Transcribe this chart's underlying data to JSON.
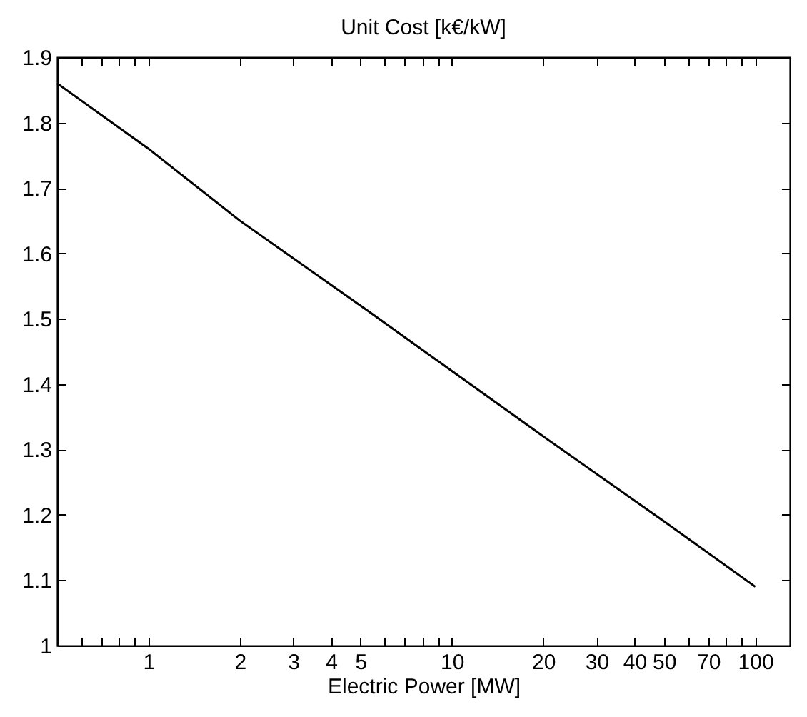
{
  "chart_data": {
    "type": "line",
    "title": "Unit Cost [k€/kW]",
    "xlabel": "Electric Power [MW]",
    "x": [
      0.5,
      1,
      2,
      5,
      10,
      20,
      50,
      100
    ],
    "series": [
      {
        "color": "#000000",
        "values": [
          1.86,
          1.76,
          1.65,
          1.52,
          1.42,
          1.32,
          1.19,
          1.09
        ]
      }
    ],
    "log": "x",
    "xlim": [
      0.5,
      130
    ],
    "ylim": [
      1,
      1.9
    ],
    "xticks": [
      {
        "value": 0.6,
        "label": null
      },
      {
        "value": 0.7,
        "label": null
      },
      {
        "value": 0.8,
        "label": null
      },
      {
        "value": 0.9,
        "label": null
      },
      1,
      2,
      3,
      4,
      5,
      {
        "value": 6,
        "label": null
      },
      {
        "value": 7,
        "label": null
      },
      {
        "value": 8,
        "label": null
      },
      {
        "value": 9,
        "label": null
      },
      10,
      20,
      30,
      40,
      50,
      {
        "value": 60,
        "label": null
      },
      70,
      {
        "value": 80,
        "label": null
      },
      {
        "value": 90,
        "label": null
      },
      100
    ],
    "yticks": [
      1,
      1.1,
      1.2,
      1.3,
      1.4,
      1.5,
      1.6,
      1.7,
      1.8,
      1.9
    ],
    "grid": false,
    "legend": false,
    "marker": "none",
    "line_style": "solid"
  }
}
